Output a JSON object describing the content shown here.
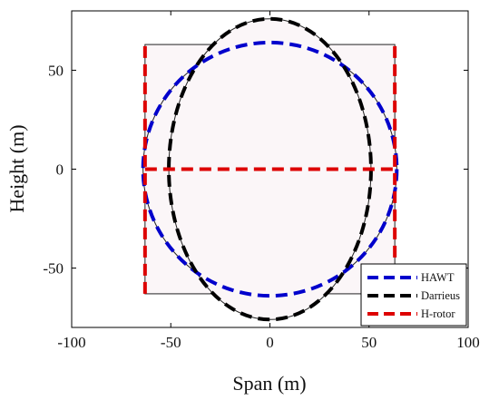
{
  "chart_data": {
    "type": "line",
    "xlabel": "Span (m)",
    "ylabel": "Height (m)",
    "xlim": [
      -100,
      100
    ],
    "ylim": [
      -80,
      80
    ],
    "xticks": [
      -100,
      -50,
      0,
      50,
      100
    ],
    "yticks": [
      -50,
      0,
      50
    ],
    "xtick_labels": [
      "-100",
      "-50",
      "0",
      "50",
      "100"
    ],
    "ytick_labels": [
      "-50",
      "0",
      "50"
    ],
    "grid": false,
    "legend_position": "bottom-right",
    "shapes": {
      "hawt_circle": {
        "center": [
          0,
          0
        ],
        "radius": 64
      },
      "darrieus_ellipse": {
        "center": [
          0,
          0
        ],
        "semi_x": 51,
        "semi_y": 76
      },
      "hrotor_rect": {
        "xmin": -63,
        "xmax": 63,
        "ymin": -63,
        "ymax": 63
      },
      "fill_color": "#fbf6f8",
      "outline_color": "#222222"
    },
    "series": [
      {
        "name": "HAWT",
        "color": "#0000cc",
        "style": "dashed",
        "shape": "circle",
        "center": [
          0,
          0
        ],
        "radius": 64
      },
      {
        "name": "Darrieus",
        "color": "#000000",
        "style": "dashed",
        "shape": "ellipse",
        "center": [
          0,
          0
        ],
        "semi_x": 51,
        "semi_y": 76
      },
      {
        "name": "H-rotor",
        "color": "#dd0000",
        "style": "dashed",
        "shape": "h",
        "segments": [
          [
            [
              -63,
              -63
            ],
            [
              -63,
              63
            ]
          ],
          [
            [
              63,
              -63
            ],
            [
              63,
              63
            ]
          ],
          [
            [
              -63,
              0
            ],
            [
              63,
              0
            ]
          ]
        ]
      }
    ]
  }
}
